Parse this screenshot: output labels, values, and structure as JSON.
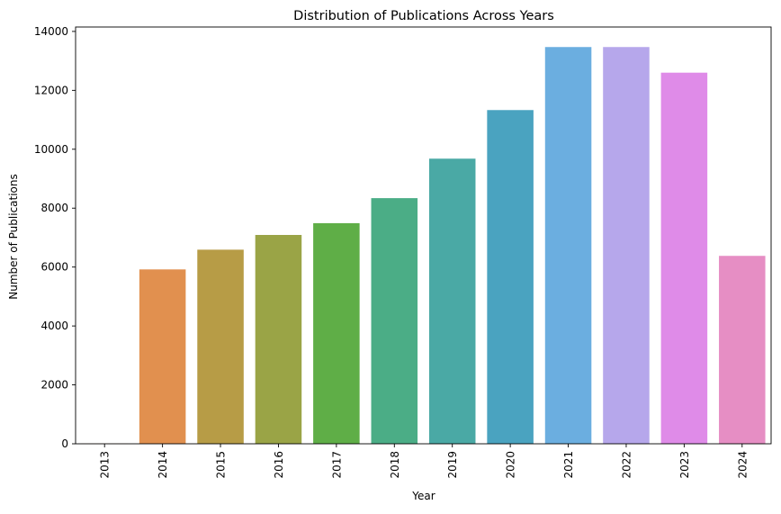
{
  "chart_data": {
    "type": "bar",
    "title": "Distribution of Publications Across Years",
    "xlabel": "Year",
    "ylabel": "Number of Publications",
    "categories": [
      "2013",
      "2014",
      "2015",
      "2016",
      "2017",
      "2018",
      "2019",
      "2020",
      "2021",
      "2022",
      "2023",
      "2024"
    ],
    "values": [
      5,
      5920,
      6590,
      7090,
      7490,
      8340,
      9680,
      11330,
      13470,
      13470,
      12600,
      6380
    ],
    "colors": [
      "#e1812c",
      "#e1904f",
      "#b79c46",
      "#9aa446",
      "#5fae47",
      "#4bad86",
      "#4aa9a5",
      "#4aa3c0",
      "#6baee0",
      "#b6a7eb",
      "#df8be8",
      "#e68ec4"
    ],
    "ylim": [
      0,
      14150
    ],
    "yticks": [
      0,
      2000,
      4000,
      6000,
      8000,
      10000,
      12000,
      14000
    ],
    "grid": false,
    "legend": "none"
  }
}
